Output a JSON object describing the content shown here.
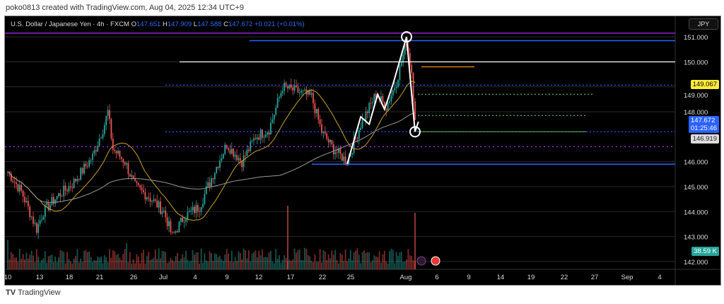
{
  "credit": "poko0813 created with TradingView.com, Aug 04, 2025 12:34 UTC+9",
  "legend": {
    "symbol": "U.S. Dollar / Japanese Yen · 4h · FXCM",
    "o_label": "O",
    "o": "147.651",
    "h_label": "H",
    "h": "147.909",
    "l_label": "L",
    "l": "147.588",
    "c_label": "C",
    "c": "147.672",
    "change": "+0.021 (+0.01%)"
  },
  "currency_button": "JPY",
  "price_axis": [
    "151.000",
    "150.000",
    "149.000",
    "148.000",
    "146.000",
    "145.000",
    "144.000",
    "143.000",
    "142.000"
  ],
  "price_tags": {
    "level": "149.067",
    "last": "147.672",
    "countdown": "01:25:46",
    "ma": "146.919",
    "volume": "38.59 K"
  },
  "brand": "TradingView",
  "colors": {
    "up": "#26a69a",
    "down": "#ef5350",
    "accent": "#2962ff",
    "level_tag": "#ffeb3b",
    "volume_tag": "#26a69a"
  },
  "chart_data": {
    "type": "candlestick",
    "x_ticks": [
      "10",
      "13",
      "18",
      "21",
      "26",
      "Jul",
      "4",
      "9",
      "12",
      "17",
      "22",
      "25",
      "Aug",
      "6",
      "9",
      "14",
      "19",
      "22",
      "27",
      "Sep",
      "4"
    ],
    "y_range": [
      141.8,
      151.6
    ],
    "price_path": [
      [
        0,
        145.6
      ],
      [
        8,
        144.8
      ],
      [
        17,
        143.3
      ],
      [
        21,
        144.0
      ],
      [
        29,
        144.6
      ],
      [
        38,
        145.1
      ],
      [
        50,
        146.2
      ],
      [
        57,
        147.5
      ],
      [
        59,
        148.0
      ],
      [
        62,
        146.5
      ],
      [
        69,
        146.0
      ],
      [
        75,
        145.0
      ],
      [
        83,
        144.6
      ],
      [
        92,
        144.0
      ],
      [
        97,
        143.0
      ],
      [
        104,
        143.8
      ],
      [
        113,
        144.2
      ],
      [
        121,
        145.5
      ],
      [
        129,
        146.7
      ],
      [
        138,
        146.0
      ],
      [
        146,
        147.0
      ],
      [
        154,
        147.3
      ],
      [
        162,
        149.0
      ],
      [
        171,
        148.8
      ],
      [
        179,
        148.6
      ],
      [
        185,
        147.2
      ],
      [
        192,
        146.5
      ],
      [
        200,
        146.0
      ],
      [
        208,
        147.5
      ],
      [
        217,
        148.7
      ],
      [
        223,
        148.2
      ],
      [
        229,
        149.2
      ],
      [
        235,
        150.8
      ],
      [
        238,
        149.6
      ],
      [
        240,
        147.672
      ]
    ],
    "levels": {
      "purple_solid": 151.15,
      "blue_top": 150.85,
      "white": 150.0,
      "orange": 149.8,
      "blue_dotted_1": 149.067,
      "green_dotted_1": 148.7,
      "green_dotted_2": 147.85,
      "blue_dotted_2": 147.2,
      "green_solid": 147.2,
      "purple_dotted": 146.6,
      "blue_bottom": 145.9
    }
  }
}
